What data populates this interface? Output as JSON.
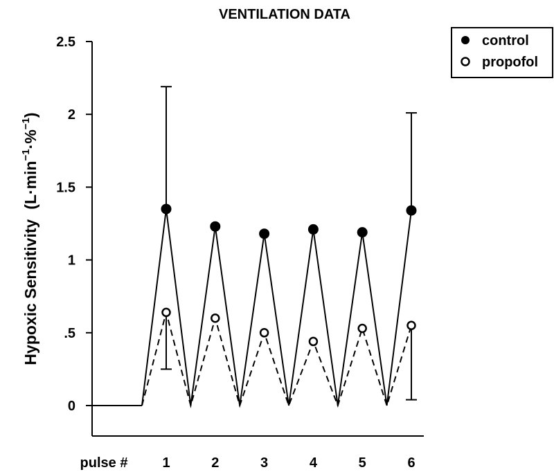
{
  "chart_data": {
    "type": "line",
    "title": "VENTILATION DATA",
    "ylabel": {
      "main": "Hypoxic Sensitivity",
      "unit_open": "(L·min",
      "sup1": "−1",
      "unit_mid": "·%",
      "sup2": "−1",
      "unit_close": ")"
    },
    "xlabel": "pulse #",
    "categories": [
      "1",
      "2",
      "3",
      "4",
      "5",
      "6"
    ],
    "ylim": [
      0,
      2.5
    ],
    "yticks": [
      {
        "value": 0,
        "label": "0"
      },
      {
        "value": 0.5,
        "label": ".5"
      },
      {
        "value": 1,
        "label": "1"
      },
      {
        "value": 1.5,
        "label": "1.5"
      },
      {
        "value": 2,
        "label": "2"
      },
      {
        "value": 2.5,
        "label": "2.5"
      }
    ],
    "series": [
      {
        "name": "control",
        "marker": "filled-circle",
        "line_style": "solid",
        "values": [
          1.35,
          1.23,
          1.18,
          1.21,
          1.19,
          1.34
        ],
        "error_bars": [
          {
            "pulse": "1",
            "direction": "up",
            "to": 2.19
          },
          {
            "pulse": "6",
            "direction": "up",
            "to": 2.01
          }
        ]
      },
      {
        "name": "propofol",
        "marker": "open-circle",
        "line_style": "dashed",
        "values": [
          0.64,
          0.6,
          0.5,
          0.44,
          0.53,
          0.55
        ],
        "error_bars": [
          {
            "pulse": "1",
            "direction": "down",
            "to": 0.25
          },
          {
            "pulse": "6",
            "direction": "down",
            "to": 0.04
          }
        ]
      }
    ],
    "baseline_value": 0,
    "legend_position": "top-right",
    "grid": false
  }
}
